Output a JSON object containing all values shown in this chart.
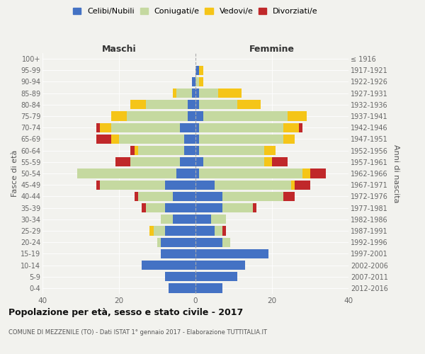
{
  "age_groups": [
    "0-4",
    "5-9",
    "10-14",
    "15-19",
    "20-24",
    "25-29",
    "30-34",
    "35-39",
    "40-44",
    "45-49",
    "50-54",
    "55-59",
    "60-64",
    "65-69",
    "70-74",
    "75-79",
    "80-84",
    "85-89",
    "90-94",
    "95-99",
    "100+"
  ],
  "birth_years": [
    "2012-2016",
    "2007-2011",
    "2002-2006",
    "1997-2001",
    "1992-1996",
    "1987-1991",
    "1982-1986",
    "1977-1981",
    "1972-1976",
    "1967-1971",
    "1962-1966",
    "1957-1961",
    "1952-1956",
    "1947-1951",
    "1942-1946",
    "1937-1941",
    "1932-1936",
    "1927-1931",
    "1922-1926",
    "1917-1921",
    "≤ 1916"
  ],
  "males": {
    "celibe": [
      7,
      8,
      14,
      9,
      9,
      8,
      6,
      8,
      6,
      8,
      5,
      4,
      3,
      3,
      4,
      2,
      2,
      1,
      1,
      0,
      0
    ],
    "coniugato": [
      0,
      0,
      0,
      0,
      1,
      3,
      3,
      5,
      9,
      17,
      26,
      13,
      12,
      17,
      18,
      16,
      11,
      4,
      0,
      0,
      0
    ],
    "vedovo": [
      0,
      0,
      0,
      0,
      0,
      1,
      0,
      0,
      0,
      0,
      0,
      0,
      1,
      2,
      3,
      4,
      4,
      1,
      0,
      0,
      0
    ],
    "divorziato": [
      0,
      0,
      0,
      0,
      0,
      0,
      0,
      1,
      1,
      1,
      0,
      4,
      1,
      4,
      1,
      0,
      0,
      0,
      0,
      0,
      0
    ]
  },
  "females": {
    "nubile": [
      7,
      11,
      13,
      19,
      7,
      5,
      4,
      7,
      7,
      5,
      1,
      2,
      1,
      1,
      1,
      2,
      1,
      1,
      0,
      1,
      0
    ],
    "coniugata": [
      0,
      0,
      0,
      0,
      2,
      2,
      4,
      8,
      16,
      20,
      27,
      16,
      17,
      22,
      22,
      22,
      10,
      5,
      1,
      0,
      0
    ],
    "vedova": [
      0,
      0,
      0,
      0,
      0,
      0,
      0,
      0,
      0,
      1,
      2,
      2,
      3,
      3,
      4,
      5,
      6,
      6,
      1,
      1,
      0
    ],
    "divorziata": [
      0,
      0,
      0,
      0,
      0,
      1,
      0,
      1,
      3,
      4,
      4,
      4,
      0,
      0,
      1,
      0,
      0,
      0,
      0,
      0,
      0
    ]
  },
  "colors": {
    "celibe": "#4472c4",
    "coniugato": "#c5d9a0",
    "vedovo": "#f5c518",
    "divorziato": "#c0282a"
  },
  "xlim": 40,
  "title": "Popolazione per età, sesso e stato civile - 2017",
  "subtitle": "COMUNE DI MEZZENILE (TO) - Dati ISTAT 1° gennaio 2017 - Elaborazione TUTTITALIA.IT",
  "ylabel_left": "Fasce di età",
  "ylabel_right": "Anni di nascita",
  "xlabel_left": "Maschi",
  "xlabel_right": "Femmine",
  "legend_labels": [
    "Celibi/Nubili",
    "Coniugati/e",
    "Vedovi/e",
    "Divorziati/e"
  ],
  "background_color": "#f2f2ee"
}
